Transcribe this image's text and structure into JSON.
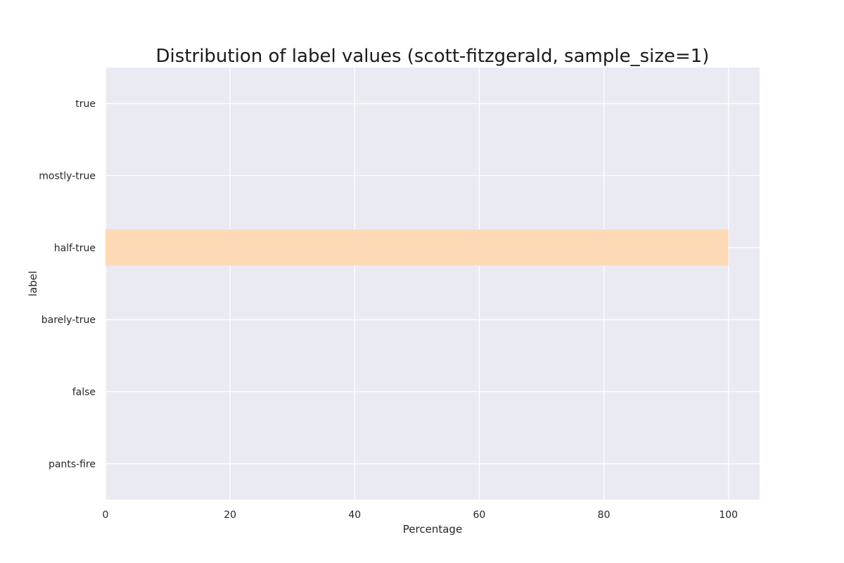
{
  "chart_data": {
    "type": "bar",
    "orientation": "horizontal",
    "title": "Distribution of label values (scott-fitzgerald, sample_size=1)",
    "xlabel": "Percentage",
    "ylabel": "label",
    "categories": [
      "true",
      "mostly-true",
      "half-true",
      "barely-true",
      "false",
      "pants-fire"
    ],
    "values": [
      0,
      0,
      100,
      0,
      0,
      0
    ],
    "xlim": [
      0,
      105
    ],
    "xticks": [
      0,
      20,
      40,
      60,
      80,
      100
    ],
    "grid": true,
    "legend": "none",
    "colors": {
      "background": "#eaeaf2",
      "grid": "#ffffff",
      "bar": "#fdd9b5"
    }
  }
}
